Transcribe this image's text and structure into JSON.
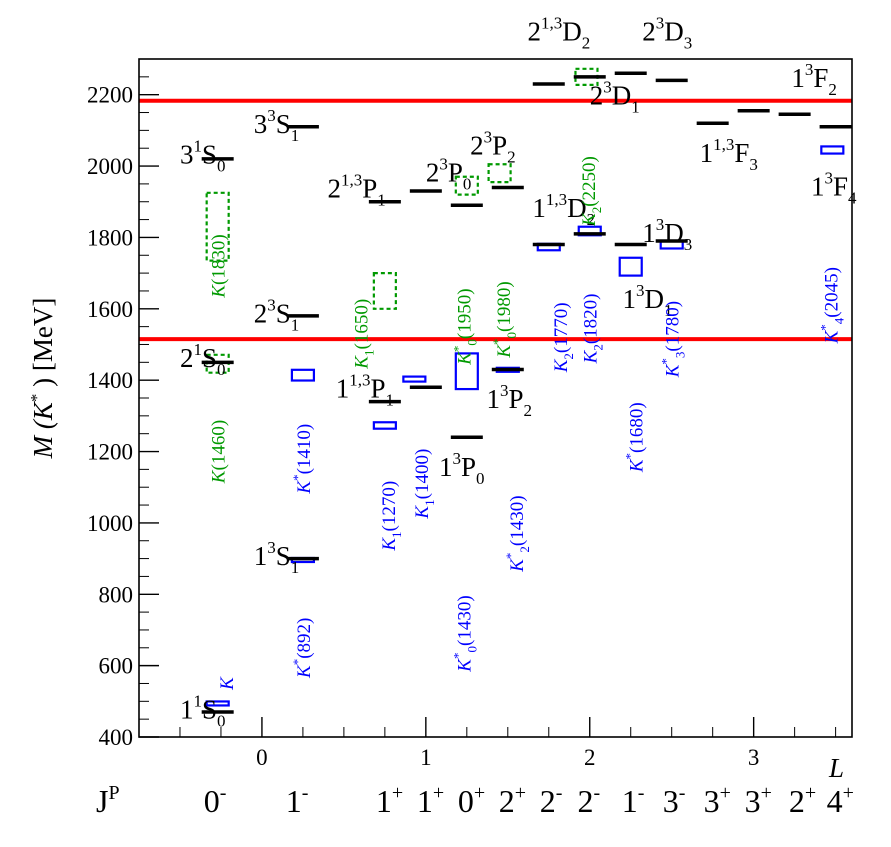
{
  "chart_data": {
    "type": "scatter",
    "ylabel": {
      "main": "M (K",
      "sup": "*",
      "tail": ") [MeV]"
    },
    "xlabel": "L",
    "xlim": [
      -0.75,
      3.6
    ],
    "ylim": [
      400,
      2300
    ],
    "x_ticks": [
      0,
      1,
      2,
      3
    ],
    "y_ticks": [
      400,
      600,
      800,
      1000,
      1200,
      1400,
      1600,
      1800,
      2000,
      2200
    ],
    "thresholds": [
      {
        "mass": 2183,
        "color": "#ff0000"
      },
      {
        "mass": 1515,
        "color": "#ff0000"
      }
    ],
    "jp_label": "J",
    "jp_sup": "P",
    "jp_row": [
      {
        "x": -0.3,
        "text": "0",
        "sup": "-"
      },
      {
        "x": 0.2,
        "text": "1",
        "sup": "-"
      },
      {
        "x": 0.75,
        "text": "1",
        "sup": "+"
      },
      {
        "x": 1.0,
        "text": "1",
        "sup": "+"
      },
      {
        "x": 1.25,
        "text": "0",
        "sup": "+"
      },
      {
        "x": 1.5,
        "text": "2",
        "sup": "+"
      },
      {
        "x": 1.75,
        "text": "2",
        "sup": "-"
      },
      {
        "x": 1.98,
        "text": "2",
        "sup": "-"
      },
      {
        "x": 2.25,
        "text": "1",
        "sup": "-"
      },
      {
        "x": 2.5,
        "text": "3",
        "sup": "-"
      },
      {
        "x": 2.75,
        "text": "3",
        "sup": "+"
      },
      {
        "x": 3.0,
        "text": "3",
        "sup": "+"
      },
      {
        "x": 3.27,
        "text": "2",
        "sup": "+"
      },
      {
        "x": 3.5,
        "text": "4",
        "sup": "+"
      }
    ],
    "predicted_levels": [
      {
        "x": -0.27,
        "mass": 470
      },
      {
        "x": -0.27,
        "mass": 1450
      },
      {
        "x": -0.27,
        "mass": 2020
      },
      {
        "x": 0.25,
        "mass": 900
      },
      {
        "x": 0.25,
        "mass": 1580
      },
      {
        "x": 0.25,
        "mass": 2110
      },
      {
        "x": 0.75,
        "mass": 1340
      },
      {
        "x": 1.0,
        "mass": 1380
      },
      {
        "x": 0.75,
        "mass": 1900
      },
      {
        "x": 1.0,
        "mass": 1930
      },
      {
        "x": 1.25,
        "mass": 1240
      },
      {
        "x": 1.25,
        "mass": 1890
      },
      {
        "x": 1.5,
        "mass": 1430
      },
      {
        "x": 1.5,
        "mass": 1940
      },
      {
        "x": 1.75,
        "mass": 1780
      },
      {
        "x": 2.0,
        "mass": 1810
      },
      {
        "x": 1.75,
        "mass": 2230
      },
      {
        "x": 2.0,
        "mass": 2250
      },
      {
        "x": 2.25,
        "mass": 1780
      },
      {
        "x": 2.5,
        "mass": 1790
      },
      {
        "x": 2.25,
        "mass": 2260
      },
      {
        "x": 2.5,
        "mass": 2240
      },
      {
        "x": 2.75,
        "mass": 2120
      },
      {
        "x": 3.0,
        "mass": 2155
      },
      {
        "x": 3.25,
        "mass": 2145
      },
      {
        "x": 3.5,
        "mass": 2110
      }
    ],
    "established_states": [
      {
        "x": -0.27,
        "mass": 494,
        "width": 5,
        "color": "#0000ff"
      },
      {
        "x": 0.25,
        "mass": 896,
        "width": 10,
        "color": "#0000ff"
      },
      {
        "x": 0.25,
        "mass": 1414,
        "width": 30,
        "color": "#0000ff"
      },
      {
        "x": 0.75,
        "mass": 1273,
        "width": 18,
        "color": "#0000ff"
      },
      {
        "x": 0.93,
        "mass": 1403,
        "width": 14,
        "color": "#0000ff"
      },
      {
        "x": 1.25,
        "mass": 1425,
        "width": 100,
        "color": "#0000ff"
      },
      {
        "x": 1.5,
        "mass": 1429,
        "width": 10,
        "color": "#0000ff"
      },
      {
        "x": 1.75,
        "mass": 1773,
        "width": 18,
        "color": "#0000ff"
      },
      {
        "x": 2.0,
        "mass": 1818,
        "width": 24,
        "color": "#0000ff"
      },
      {
        "x": 2.25,
        "mass": 1718,
        "width": 50,
        "color": "#0000ff"
      },
      {
        "x": 2.5,
        "mass": 1779,
        "width": 20,
        "color": "#0000ff"
      },
      {
        "x": 3.48,
        "mass": 2045,
        "width": 20,
        "color": "#0000ff"
      }
    ],
    "unconfirmed_states": [
      {
        "x": -0.27,
        "mass": 1830,
        "width": 190,
        "color": "#009900"
      },
      {
        "x": -0.27,
        "mass": 1446,
        "width": 50,
        "color": "#009900"
      },
      {
        "x": 0.75,
        "mass": 1650,
        "width": 100,
        "color": "#009900"
      },
      {
        "x": 1.25,
        "mass": 1945,
        "width": 50,
        "color": "#009900"
      },
      {
        "x": 1.45,
        "mass": 1980,
        "width": 50,
        "color": "#009900"
      },
      {
        "x": 1.98,
        "mass": 2250,
        "width": 45,
        "color": "#009900"
      }
    ],
    "level_labels": [
      {
        "x": -0.5,
        "mass": 480,
        "base": "1",
        "sup": "1",
        "mid": "S",
        "sub": "0",
        "color": "#000000"
      },
      {
        "x": -0.5,
        "mass": 1465,
        "base": "2",
        "sup": "1",
        "mid": "S",
        "sub": "0",
        "color": "#000000"
      },
      {
        "x": -0.5,
        "mass": 2035,
        "base": "3",
        "sup": "1",
        "mid": "S",
        "sub": "0",
        "color": "#000000"
      },
      {
        "x": -0.05,
        "mass": 910,
        "base": "1",
        "sup": "3",
        "mid": "S",
        "sub": "1",
        "color": "#000000"
      },
      {
        "x": -0.05,
        "mass": 1590,
        "base": "2",
        "sup": "3",
        "mid": "S",
        "sub": "1",
        "color": "#000000"
      },
      {
        "x": -0.05,
        "mass": 2120,
        "base": "3",
        "sup": "3",
        "mid": "S",
        "sub": "1",
        "color": "#000000"
      },
      {
        "x": 0.45,
        "mass": 1380,
        "base": "1",
        "sup": "1,3",
        "mid": "P",
        "sub": "1",
        "color": "#000000"
      },
      {
        "x": 0.4,
        "mass": 1940,
        "base": "2",
        "sup": "1,3",
        "mid": "P",
        "sub": "1",
        "color": "#000000"
      },
      {
        "x": 1.08,
        "mass": 1160,
        "base": "1",
        "sup": "3",
        "mid": "P",
        "sub": "0",
        "color": "#000000"
      },
      {
        "x": 1.37,
        "mass": 1350,
        "base": "1",
        "sup": "3",
        "mid": "P",
        "sub": "2",
        "color": "#000000"
      },
      {
        "x": 1.0,
        "mass": 1985,
        "base": "2",
        "sup": "3",
        "mid": "P",
        "sub": "0",
        "color": "#000000"
      },
      {
        "x": 1.27,
        "mass": 2060,
        "base": "2",
        "sup": "3",
        "mid": "P",
        "sub": "2",
        "color": "#000000"
      },
      {
        "x": 1.65,
        "mass": 1885,
        "base": "1",
        "sup": "1,3",
        "mid": "D",
        "sub": "2",
        "color": "#000000"
      },
      {
        "x": 1.62,
        "mass": 2380,
        "base": "2",
        "sup": "1,3",
        "mid": "D",
        "sub": "2",
        "color": "#000000"
      },
      {
        "x": 2.2,
        "mass": 1630,
        "base": "1",
        "sup": "3",
        "mid": "D",
        "sub": "1",
        "color": "#000000"
      },
      {
        "x": 2.0,
        "mass": 2200,
        "base": "2",
        "sup": "3",
        "mid": "D",
        "sub": "1",
        "color": "#000000"
      },
      {
        "x": 2.32,
        "mass": 1815,
        "base": "1",
        "sup": "3",
        "mid": "D",
        "sub": "3",
        "color": "#000000"
      },
      {
        "x": 2.32,
        "mass": 2380,
        "base": "2",
        "sup": "3",
        "mid": "D",
        "sub": "3",
        "color": "#000000"
      },
      {
        "x": 2.67,
        "mass": 2040,
        "base": "1",
        "sup": "1,3",
        "mid": "F",
        "sub": "3",
        "color": "#000000"
      },
      {
        "x": 3.23,
        "mass": 2250,
        "base": "1",
        "sup": "3",
        "mid": "F",
        "sub": "2",
        "color": "#000000"
      },
      {
        "x": 3.35,
        "mass": 1945,
        "base": "1",
        "sup": "3",
        "mid": "F",
        "sub": "4",
        "color": "#000000"
      }
    ],
    "state_labels": [
      {
        "x": -0.22,
        "mass": 550,
        "text": "K",
        "sup": "",
        "sub": "",
        "rest": "",
        "color": "#0000ff"
      },
      {
        "x": -0.27,
        "mass": 1200,
        "text": "K",
        "sup": "",
        "sub": "",
        "rest": "(1460)",
        "color": "#009900"
      },
      {
        "x": -0.27,
        "mass": 1720,
        "text": "K",
        "sup": "",
        "sub": "",
        "rest": "(1830)",
        "color": "#009900"
      },
      {
        "x": 0.25,
        "mass": 650,
        "text": "K",
        "sup": "*",
        "sub": "",
        "rest": "(892)",
        "color": "#0000ff"
      },
      {
        "x": 0.25,
        "mass": 1180,
        "text": "K",
        "sup": "*",
        "sub": "",
        "rest": "(1410)",
        "color": "#0000ff"
      },
      {
        "x": 0.6,
        "mass": 1530,
        "text": "K",
        "sup": "",
        "sub": "1",
        "rest": "(1650)",
        "color": "#009900"
      },
      {
        "x": 0.77,
        "mass": 1020,
        "text": "K",
        "sup": "",
        "sub": "1",
        "rest": "(1270)",
        "color": "#0000ff"
      },
      {
        "x": 0.97,
        "mass": 1110,
        "text": "K",
        "sup": "",
        "sub": "1",
        "rest": "(1400)",
        "color": "#0000ff"
      },
      {
        "x": 1.23,
        "mass": 690,
        "text": "K",
        "sup": "*",
        "sub": "0",
        "rest": "(1430)",
        "color": "#0000ff"
      },
      {
        "x": 1.55,
        "mass": 970,
        "text": "K",
        "sup": "*",
        "sub": "2",
        "rest": "(1430)",
        "color": "#0000ff"
      },
      {
        "x": 1.23,
        "mass": 1550,
        "text": "K",
        "sup": "*",
        "sub": "0",
        "rest": "(1950)",
        "color": "#009900"
      },
      {
        "x": 1.47,
        "mass": 1570,
        "text": "K",
        "sup": "*",
        "sub": "0",
        "rest": "(1980)",
        "color": "#009900"
      },
      {
        "x": 1.82,
        "mass": 1520,
        "text": "K",
        "sup": "",
        "sub": "2",
        "rest": "(1770)",
        "color": "#0000ff"
      },
      {
        "x": 2.0,
        "mass": 1545,
        "text": "K",
        "sup": "",
        "sub": "2",
        "rest": "(1820)",
        "color": "#0000ff"
      },
      {
        "x": 1.99,
        "mass": 1930,
        "text": "K",
        "sup": "",
        "sub": "2",
        "rest": "(2250)",
        "color": "#009900"
      },
      {
        "x": 2.28,
        "mass": 1240,
        "text": "K",
        "sup": "*",
        "sub": "",
        "rest": "(1680)",
        "color": "#0000ff"
      },
      {
        "x": 2.5,
        "mass": 1515,
        "text": "K",
        "sup": "*",
        "sub": "3",
        "rest": "(1780)",
        "color": "#0000ff"
      },
      {
        "x": 3.47,
        "mass": 1610,
        "text": "K",
        "sup": "*",
        "sub": "4",
        "rest": "(2045)",
        "color": "#0000ff"
      }
    ]
  }
}
